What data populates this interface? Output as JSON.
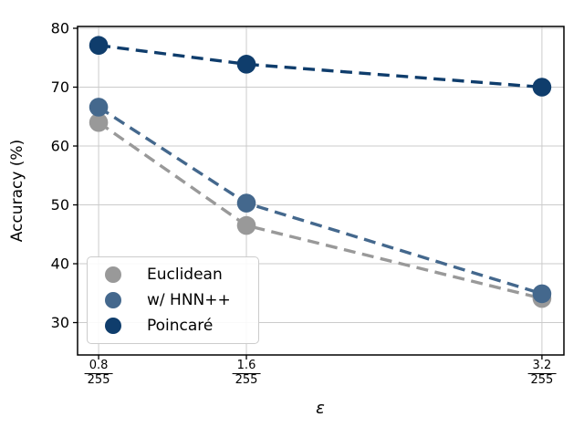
{
  "chart_data": {
    "type": "line",
    "title": "",
    "xlabel": "ε",
    "ylabel": "Accuracy (%)",
    "x": [
      0.8,
      1.6,
      3.2
    ],
    "x_tick_labels": [
      {
        "num": "0.8",
        "den": "255"
      },
      {
        "num": "1.6",
        "den": "255"
      },
      {
        "num": "3.2",
        "den": "255"
      }
    ],
    "series": [
      {
        "name": "Euclidean",
        "color": "#999999",
        "values": [
          64.0,
          46.5,
          34.1
        ]
      },
      {
        "name": "w/ HNN++",
        "color": "#44688d",
        "values": [
          66.6,
          50.3,
          34.9
        ]
      },
      {
        "name": "Poincaré",
        "color": "#0f3d6c",
        "values": [
          77.1,
          73.9,
          70.0
        ]
      }
    ],
    "yticks": [
      30,
      40,
      50,
      60,
      70,
      80
    ],
    "xlim": [
      0.686,
      3.319
    ],
    "ylim": [
      24.5,
      80.31
    ],
    "grid": true,
    "legend_position": "lower-left",
    "line_style": "dashed",
    "marker": "circle"
  },
  "colors": {
    "background": "#ffffff",
    "gridline": "#cbcbcb",
    "axes": "#000000",
    "legend_border": "#cccccc"
  }
}
